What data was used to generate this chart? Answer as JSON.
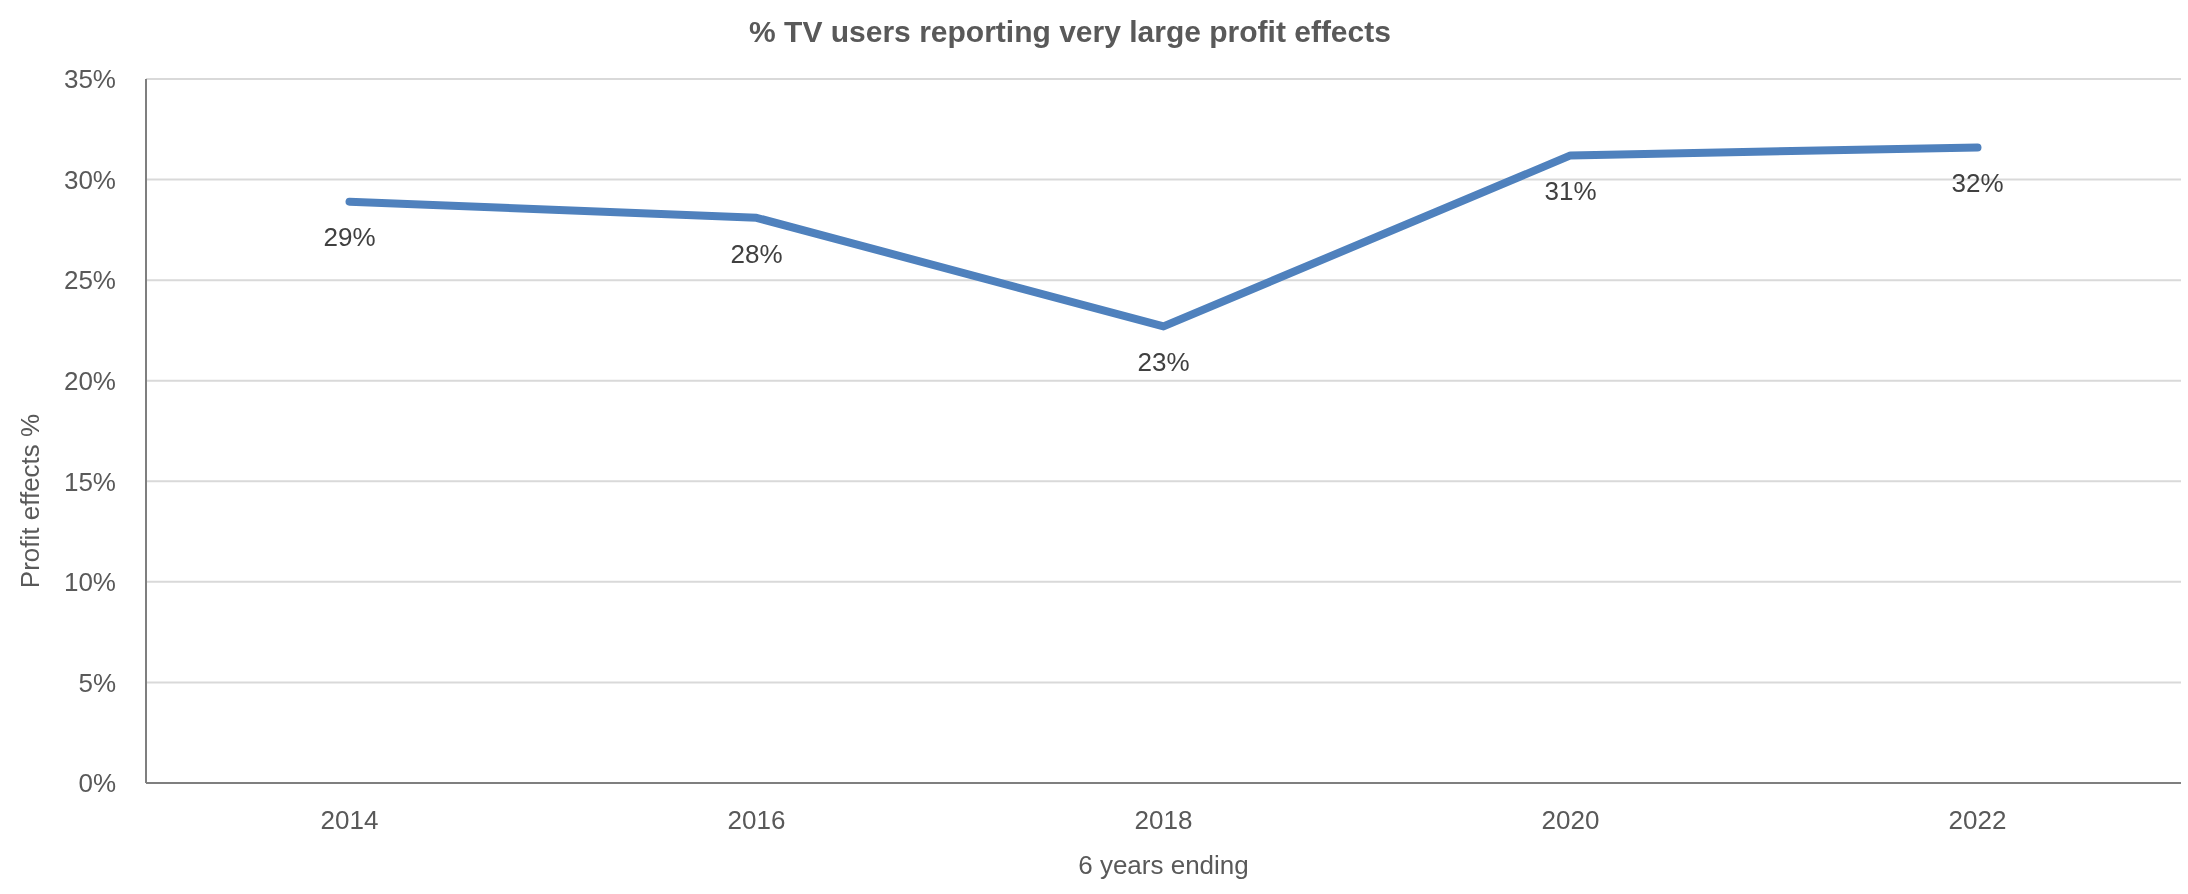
{
  "chart_data": {
    "type": "line",
    "title": "% TV users reporting very large profit effects",
    "xlabel": "6 years ending",
    "ylabel": "Profit effects %",
    "categories": [
      "2014",
      "2016",
      "2018",
      "2020",
      "2022"
    ],
    "series": [
      {
        "color": "#4f81bd",
        "values": [
          28.9,
          28.1,
          22.7,
          31.2,
          31.6
        ],
        "value_labels": [
          "29%",
          "28%",
          "23%",
          "31%",
          "32%"
        ]
      }
    ],
    "ylim": [
      0,
      35
    ],
    "yticks": [
      {
        "value": 0,
        "label": "0%"
      },
      {
        "value": 5,
        "label": "5%"
      },
      {
        "value": 10,
        "label": "10%"
      },
      {
        "value": 15,
        "label": "15%"
      },
      {
        "value": 20,
        "label": "20%"
      },
      {
        "value": 25,
        "label": "25%"
      },
      {
        "value": 30,
        "label": "30%"
      },
      {
        "value": 35,
        "label": "35%"
      }
    ],
    "grid": "y",
    "marker": "none",
    "line_style": "solid"
  }
}
